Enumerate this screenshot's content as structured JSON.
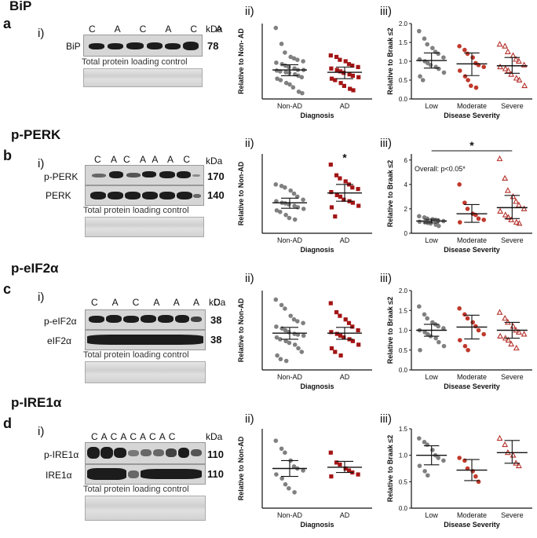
{
  "colors": {
    "non_ad": "#808080",
    "ad": "#a31515",
    "moderate": "#c0392b",
    "severe": "#b5302a",
    "low": "#808080"
  },
  "panels": [
    {
      "letter": "a",
      "title": "BiP",
      "blot": {
        "roman": "i)",
        "lanes": "C  A  C  A  C  A",
        "kda": "kDa",
        "rows": [
          {
            "label": "BiP",
            "mw": "78"
          }
        ],
        "loading": "Total protein loading control"
      },
      "diag_roman": "ii)",
      "sev_roman": "iii)"
    },
    {
      "letter": "b",
      "title": "p-PERK",
      "blot": {
        "roman": "i)",
        "lanes": "C   A  C   A  A   A   C",
        "kda": "kDa",
        "rows": [
          {
            "label": "p-PERK",
            "mw": "170"
          },
          {
            "label": "PERK",
            "mw": "140"
          }
        ],
        "loading": "Total protein loading control"
      },
      "diag_roman": "ii)",
      "sev_roman": "iii)"
    },
    {
      "letter": "c",
      "title": "p-eIF2α",
      "blot": {
        "roman": "i)",
        "lanes": "C  A  C  A  A  A  C",
        "kda": "kDa",
        "rows": [
          {
            "label": "p-eIF2α",
            "mw": "38"
          },
          {
            "label": "eIF2α",
            "mw": "38"
          }
        ],
        "loading": "Total protein loading control"
      },
      "diag_roman": "ii)",
      "sev_roman": "iii)"
    },
    {
      "letter": "d",
      "title": "p-IRE1α",
      "blot": {
        "roman": "i)",
        "lanes": "C  A  C  A  C  A  C  A  C",
        "kda": "kDa",
        "rows": [
          {
            "label": "p-IRE1α",
            "mw": "110"
          },
          {
            "label": "IRE1α",
            "mw": "110"
          }
        ],
        "loading": "Total protein loading control"
      },
      "diag_roman": "ii)",
      "sev_roman": "iii)"
    }
  ],
  "chart_data": [
    {
      "id": "a-ii",
      "type": "scatter",
      "xlabel": "Diagnosis",
      "ylabel": "Relative to Non- AD",
      "categories": [
        "Non-AD",
        "AD"
      ],
      "ylim": [
        0,
        2.6
      ],
      "series": [
        {
          "category": "Non-AD",
          "marker": "circle",
          "mean": 1.0,
          "sd_low": 0.8,
          "sd_high": 1.18,
          "values": [
            2.45,
            1.9,
            1.6,
            1.45,
            1.4,
            1.35,
            1.3,
            1.25,
            1.2,
            1.15,
            1.1,
            1.05,
            1.0,
            1.0,
            0.98,
            0.95,
            0.92,
            0.9,
            0.85,
            0.8,
            0.75,
            0.7,
            0.65,
            0.55,
            0.5,
            0.4,
            0.25,
            0.2
          ]
        },
        {
          "category": "AD",
          "marker": "square",
          "mean": 0.92,
          "sd_low": 0.7,
          "sd_high": 1.1,
          "values": [
            1.5,
            1.45,
            1.35,
            1.3,
            1.2,
            1.15,
            1.1,
            1.05,
            1.0,
            0.95,
            0.9,
            0.85,
            0.8,
            0.75,
            0.7,
            0.65,
            0.55,
            0.45,
            0.35,
            0.3
          ]
        }
      ]
    },
    {
      "id": "a-iii",
      "type": "scatter",
      "xlabel": "Disease Severity",
      "ylabel": "Relative to Braak ≤2",
      "categories": [
        "Low",
        "Moderate",
        "Severe"
      ],
      "ylim": [
        0,
        2.0
      ],
      "yticks": [
        "0.0",
        "0.5",
        "1.0",
        "1.5",
        "2.0"
      ],
      "series": [
        {
          "category": "Low",
          "marker": "circle",
          "mean": 1.02,
          "sd_low": 0.82,
          "sd_high": 1.22,
          "values": [
            1.8,
            1.6,
            1.45,
            1.35,
            1.25,
            1.2,
            1.1,
            1.05,
            1.0,
            0.95,
            0.9,
            0.85,
            0.8,
            0.7,
            0.6,
            0.5
          ]
        },
        {
          "category": "Moderate",
          "marker": "circle",
          "mean": 0.93,
          "sd_low": 0.62,
          "sd_high": 1.22,
          "values": [
            1.4,
            1.3,
            1.2,
            1.1,
            0.95,
            0.9,
            0.85,
            0.75,
            0.6,
            0.5,
            0.35,
            0.3
          ]
        },
        {
          "category": "Severe",
          "marker": "triangle",
          "mean": 0.88,
          "sd_low": 0.68,
          "sd_high": 1.1,
          "values": [
            1.45,
            1.4,
            1.25,
            1.15,
            1.05,
            1.0,
            0.9,
            0.85,
            0.8,
            0.75,
            0.65,
            0.55,
            0.5,
            0.35
          ]
        }
      ]
    },
    {
      "id": "b-ii",
      "type": "scatter",
      "xlabel": "Diagnosis",
      "ylabel": "Relative to Non-AD",
      "categories": [
        "Non-AD",
        "AD"
      ],
      "ylim": [
        0,
        2.6
      ],
      "annotations": [
        {
          "category": "AD",
          "text": "*"
        }
      ],
      "series": [
        {
          "category": "Non-AD",
          "marker": "circle",
          "mean": 1.0,
          "sd_low": 0.82,
          "sd_high": 1.15,
          "values": [
            1.6,
            1.55,
            1.5,
            1.4,
            1.3,
            1.2,
            1.1,
            1.05,
            1.0,
            0.98,
            0.95,
            0.9,
            0.85,
            0.8,
            0.75,
            0.7,
            0.6,
            0.5,
            0.45
          ]
        },
        {
          "category": "AD",
          "marker": "square",
          "mean": 1.32,
          "sd_low": 1.05,
          "sd_high": 1.6,
          "values": [
            2.25,
            1.9,
            1.8,
            1.7,
            1.6,
            1.5,
            1.45,
            1.35,
            1.25,
            1.2,
            1.1,
            1.05,
            1.0,
            0.9,
            0.85,
            0.55
          ]
        }
      ]
    },
    {
      "id": "b-iii",
      "type": "scatter",
      "xlabel": "Disease Severity",
      "ylabel": "Relative to Braak ≤2",
      "categories": [
        "Low",
        "Moderate",
        "Severe"
      ],
      "ylim": [
        0,
        6.5
      ],
      "yticks": [
        "0",
        "2",
        "4",
        "6"
      ],
      "annotations": [
        {
          "text": "*",
          "from": "Low",
          "to": "Severe"
        }
      ],
      "overall_text": "Overall: p<0.05*",
      "series": [
        {
          "category": "Low",
          "marker": "circle",
          "mean": 1.0,
          "sd_low": 0.85,
          "sd_high": 1.15,
          "values": [
            1.4,
            1.3,
            1.2,
            1.15,
            1.1,
            1.05,
            1.0,
            0.95,
            0.9,
            0.85,
            0.8,
            0.7,
            0.6
          ]
        },
        {
          "category": "Moderate",
          "marker": "circle",
          "mean": 1.6,
          "sd_low": 0.9,
          "sd_high": 2.35,
          "values": [
            4.0,
            2.5,
            2.0,
            1.6,
            1.5,
            1.2,
            1.1,
            0.9
          ]
        },
        {
          "category": "Severe",
          "marker": "triangle",
          "mean": 2.1,
          "sd_low": 1.2,
          "sd_high": 3.1,
          "values": [
            6.1,
            4.5,
            3.5,
            3.0,
            2.6,
            2.3,
            2.0,
            1.8,
            1.5,
            1.3,
            1.1,
            0.9,
            0.8
          ]
        }
      ]
    },
    {
      "id": "c-ii",
      "type": "scatter",
      "xlabel": "Diagnosis",
      "ylabel": "Relative to Non-AD",
      "categories": [
        "Non-AD",
        "AD"
      ],
      "ylim": [
        0,
        2.2
      ],
      "series": [
        {
          "category": "Non-AD",
          "marker": "circle",
          "mean": 1.02,
          "sd_low": 0.85,
          "sd_high": 1.18,
          "values": [
            1.95,
            1.8,
            1.7,
            1.5,
            1.4,
            1.35,
            1.3,
            1.2,
            1.15,
            1.1,
            1.05,
            1.0,
            0.98,
            0.95,
            0.9,
            0.85,
            0.8,
            0.75,
            0.7,
            0.6,
            0.5,
            0.4,
            0.3,
            0.25
          ]
        },
        {
          "category": "AD",
          "marker": "square",
          "mean": 1.02,
          "sd_low": 0.85,
          "sd_high": 1.18,
          "values": [
            1.85,
            1.6,
            1.5,
            1.4,
            1.3,
            1.2,
            1.1,
            1.05,
            1.0,
            0.95,
            0.9,
            0.85,
            0.8,
            0.7,
            0.6,
            0.5,
            0.4
          ]
        }
      ]
    },
    {
      "id": "c-iii",
      "type": "scatter",
      "xlabel": "Disease Severity",
      "ylabel": "Relative to Braak ≤2",
      "categories": [
        "Low",
        "Moderate",
        "Severe"
      ],
      "ylim": [
        0,
        2.0
      ],
      "yticks": [
        "0.0",
        "0.5",
        "1.0",
        "1.5",
        "2.0"
      ],
      "series": [
        {
          "category": "Low",
          "marker": "circle",
          "mean": 1.0,
          "sd_low": 0.85,
          "sd_high": 1.15,
          "values": [
            1.6,
            1.4,
            1.3,
            1.2,
            1.15,
            1.1,
            1.05,
            1.0,
            0.95,
            0.9,
            0.85,
            0.8,
            0.7,
            0.6,
            0.5
          ]
        },
        {
          "category": "Moderate",
          "marker": "circle",
          "mean": 1.08,
          "sd_low": 0.78,
          "sd_high": 1.38,
          "values": [
            1.55,
            1.4,
            1.3,
            1.2,
            1.1,
            1.0,
            0.9,
            0.75,
            0.6,
            0.5
          ]
        },
        {
          "category": "Severe",
          "marker": "triangle",
          "mean": 1.0,
          "sd_low": 0.8,
          "sd_high": 1.2,
          "values": [
            1.45,
            1.3,
            1.2,
            1.1,
            1.0,
            0.95,
            0.9,
            0.85,
            0.8,
            0.75,
            0.65,
            0.55
          ]
        }
      ]
    },
    {
      "id": "d-ii",
      "type": "scatter",
      "xlabel": "Diagnosis",
      "ylabel": "Relative to Non-AD",
      "categories": [
        "Non-AD",
        "AD"
      ],
      "ylim": [
        0,
        2.0
      ],
      "series": [
        {
          "category": "Non-AD",
          "marker": "circle",
          "mean": 1.0,
          "sd_low": 0.8,
          "sd_high": 1.2,
          "values": [
            1.7,
            1.5,
            1.4,
            1.2,
            1.05,
            1.0,
            0.95,
            0.85,
            0.75,
            0.6,
            0.5,
            0.4
          ]
        },
        {
          "category": "AD",
          "marker": "square",
          "mean": 1.03,
          "sd_low": 0.9,
          "sd_high": 1.18,
          "values": [
            1.4,
            1.15,
            1.1,
            1.0,
            0.95,
            0.9,
            0.85,
            0.8
          ]
        }
      ]
    },
    {
      "id": "d-iii",
      "type": "scatter",
      "xlabel": "Disease Severity",
      "ylabel": "Relative to Braak ≤2",
      "categories": [
        "Low",
        "Moderate",
        "Severe"
      ],
      "ylim": [
        0,
        1.5
      ],
      "yticks": [
        "0.0",
        "0.5",
        "1.0",
        "1.5"
      ],
      "series": [
        {
          "category": "Low",
          "marker": "circle",
          "mean": 1.0,
          "sd_low": 0.82,
          "sd_high": 1.18,
          "values": [
            1.32,
            1.25,
            1.2,
            1.1,
            1.0,
            0.95,
            0.9,
            0.8,
            0.7,
            0.62
          ]
        },
        {
          "category": "Moderate",
          "marker": "circle",
          "mean": 0.72,
          "sd_low": 0.52,
          "sd_high": 0.92,
          "values": [
            0.95,
            0.9,
            0.75,
            0.7,
            0.6,
            0.5
          ]
        },
        {
          "category": "Severe",
          "marker": "triangle",
          "mean": 1.05,
          "sd_low": 0.85,
          "sd_high": 1.28,
          "values": [
            1.32,
            1.2,
            1.05,
            1.0,
            0.85,
            0.8
          ]
        }
      ]
    }
  ]
}
